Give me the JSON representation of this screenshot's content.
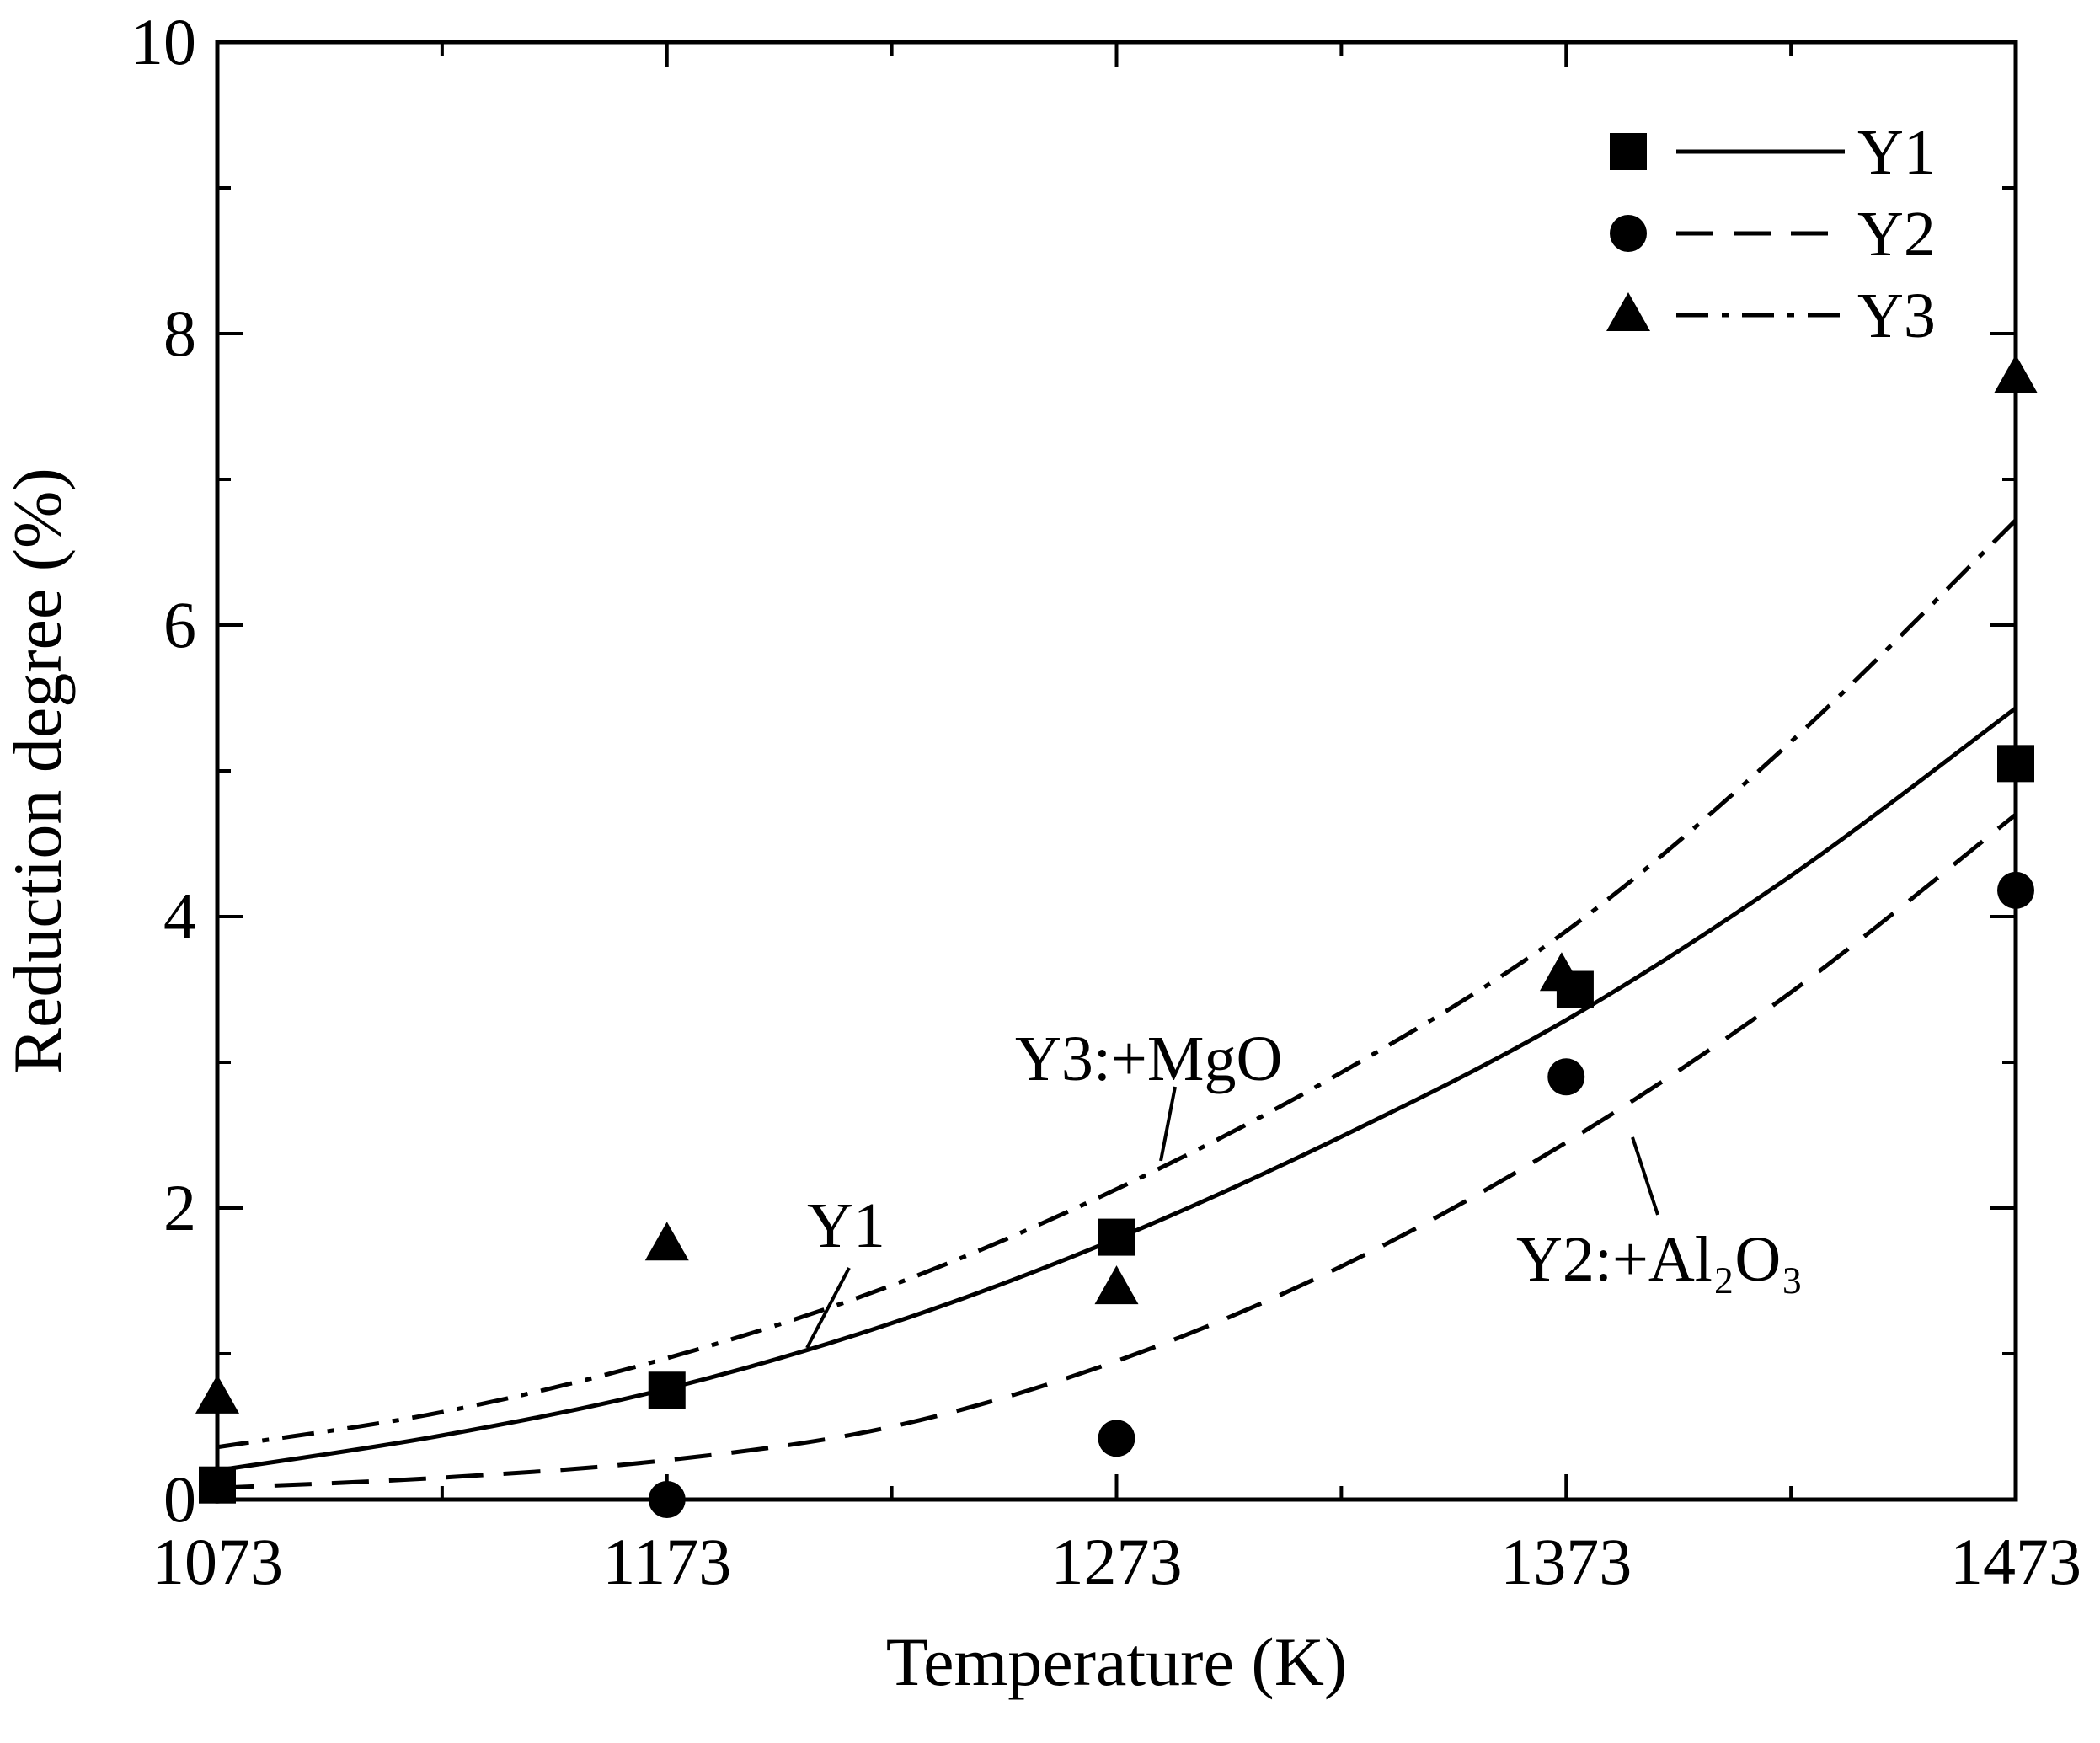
{
  "chart_data": {
    "type": "scatter",
    "title": "",
    "xlabel": "Temperature (K)",
    "ylabel": "Reduction degree (%)",
    "xlim": [
      1073,
      1473
    ],
    "ylim": [
      0,
      10
    ],
    "xticks": [
      1073,
      1173,
      1273,
      1373,
      1473
    ],
    "yticks": [
      0,
      2,
      4,
      6,
      8,
      10
    ],
    "grid": false,
    "legend_position": "top-right",
    "series": [
      {
        "name": "Y1",
        "marker": "square",
        "line": "solid",
        "points": [
          [
            1073,
            0.1
          ],
          [
            1173,
            0.75
          ],
          [
            1273,
            1.8
          ],
          [
            1375,
            3.5
          ],
          [
            1473,
            5.05
          ]
        ],
        "fit": [
          0.2,
          0.44,
          0.76,
          1.21,
          1.79,
          2.49,
          3.29,
          4.28,
          5.43
        ]
      },
      {
        "name": "Y2",
        "marker": "circle",
        "line": "dashed",
        "points": [
          [
            1073,
            0.1
          ],
          [
            1173,
            0.0
          ],
          [
            1273,
            0.42
          ],
          [
            1373,
            2.9
          ],
          [
            1473,
            4.18
          ]
        ],
        "fit": [
          0.08,
          0.15,
          0.27,
          0.5,
          0.95,
          1.6,
          2.45,
          3.48,
          4.7
        ]
      },
      {
        "name": "Y3",
        "marker": "triangle",
        "line": "dash-dot",
        "points": [
          [
            1073,
            0.7
          ],
          [
            1173,
            1.75
          ],
          [
            1273,
            1.45
          ],
          [
            1372,
            3.6
          ],
          [
            1473,
            7.7
          ]
        ],
        "fit": [
          0.36,
          0.6,
          0.97,
          1.47,
          2.13,
          2.93,
          3.9,
          5.2,
          6.72
        ]
      }
    ],
    "fit_x": [
      1073,
      1123,
      1173,
      1223,
      1273,
      1323,
      1373,
      1423,
      1473
    ],
    "annotations": [
      {
        "id": "y3",
        "text": "Y3:+MgO",
        "series": "Y3"
      },
      {
        "id": "y1",
        "text": "Y1",
        "series": "Y1"
      },
      {
        "id": "y2",
        "text": "Y2:+Al₂O₃",
        "series": "Y2"
      }
    ]
  }
}
